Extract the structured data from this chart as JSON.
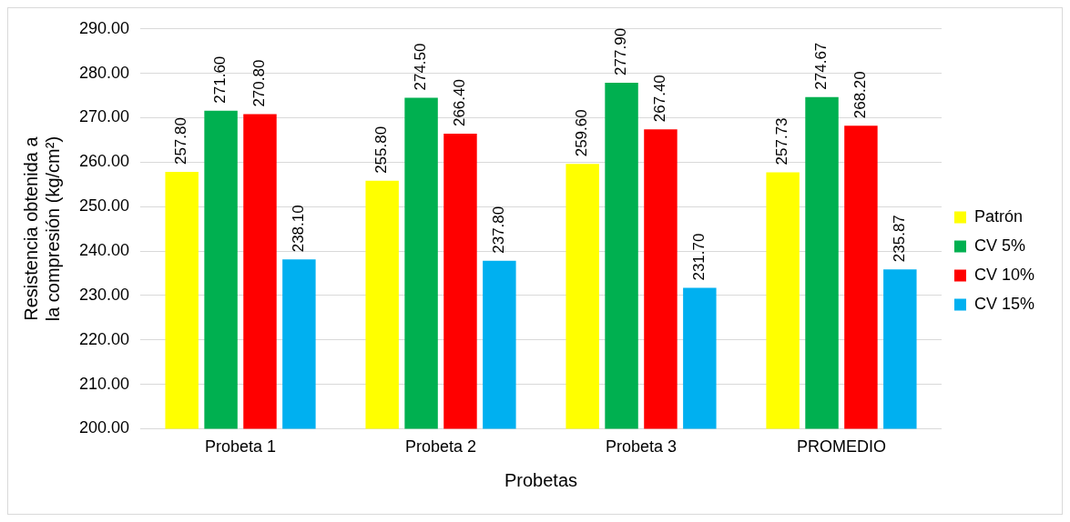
{
  "chart_data": {
    "type": "bar",
    "xlabel": "Probetas",
    "ylabel": "Resistencia obtenida a la compresión (kg/cm²)",
    "categories": [
      "Probeta 1",
      "Probeta 2",
      "Probeta 3",
      "PROMEDIO"
    ],
    "series": [
      {
        "name": "Patrón",
        "color": "#ffff00",
        "values": [
          257.8,
          255.8,
          259.6,
          257.73
        ],
        "value_labels": [
          "257.80",
          "255.80",
          "259.60",
          "257.73"
        ]
      },
      {
        "name": "CV 5%",
        "color": "#00b050",
        "values": [
          271.6,
          274.5,
          277.9,
          274.67
        ],
        "value_labels": [
          "271.60",
          "274.50",
          "277.90",
          "274.67"
        ]
      },
      {
        "name": "CV 10%",
        "color": "#ff0000",
        "values": [
          270.8,
          266.4,
          267.4,
          268.2
        ],
        "value_labels": [
          "270.80",
          "266.40",
          "267.40",
          "268.20"
        ]
      },
      {
        "name": "CV 15%",
        "color": "#00b0f0",
        "values": [
          238.1,
          237.8,
          231.7,
          235.87
        ],
        "value_labels": [
          "238.10",
          "237.80",
          "231.70",
          "235.87"
        ]
      }
    ],
    "ylim": [
      200,
      290
    ],
    "yticks": [
      {
        "value": 200,
        "label": "200.00"
      },
      {
        "value": 210,
        "label": "210.00"
      },
      {
        "value": 220,
        "label": "220.00"
      },
      {
        "value": 230,
        "label": "230.00"
      },
      {
        "value": 240,
        "label": "240.00"
      },
      {
        "value": 250,
        "label": "250.00"
      },
      {
        "value": 260,
        "label": "260.00"
      },
      {
        "value": 270,
        "label": "270.00"
      },
      {
        "value": 280,
        "label": "280.00"
      },
      {
        "value": 290,
        "label": "290.00"
      }
    ],
    "grid": "y",
    "legend": "right"
  }
}
